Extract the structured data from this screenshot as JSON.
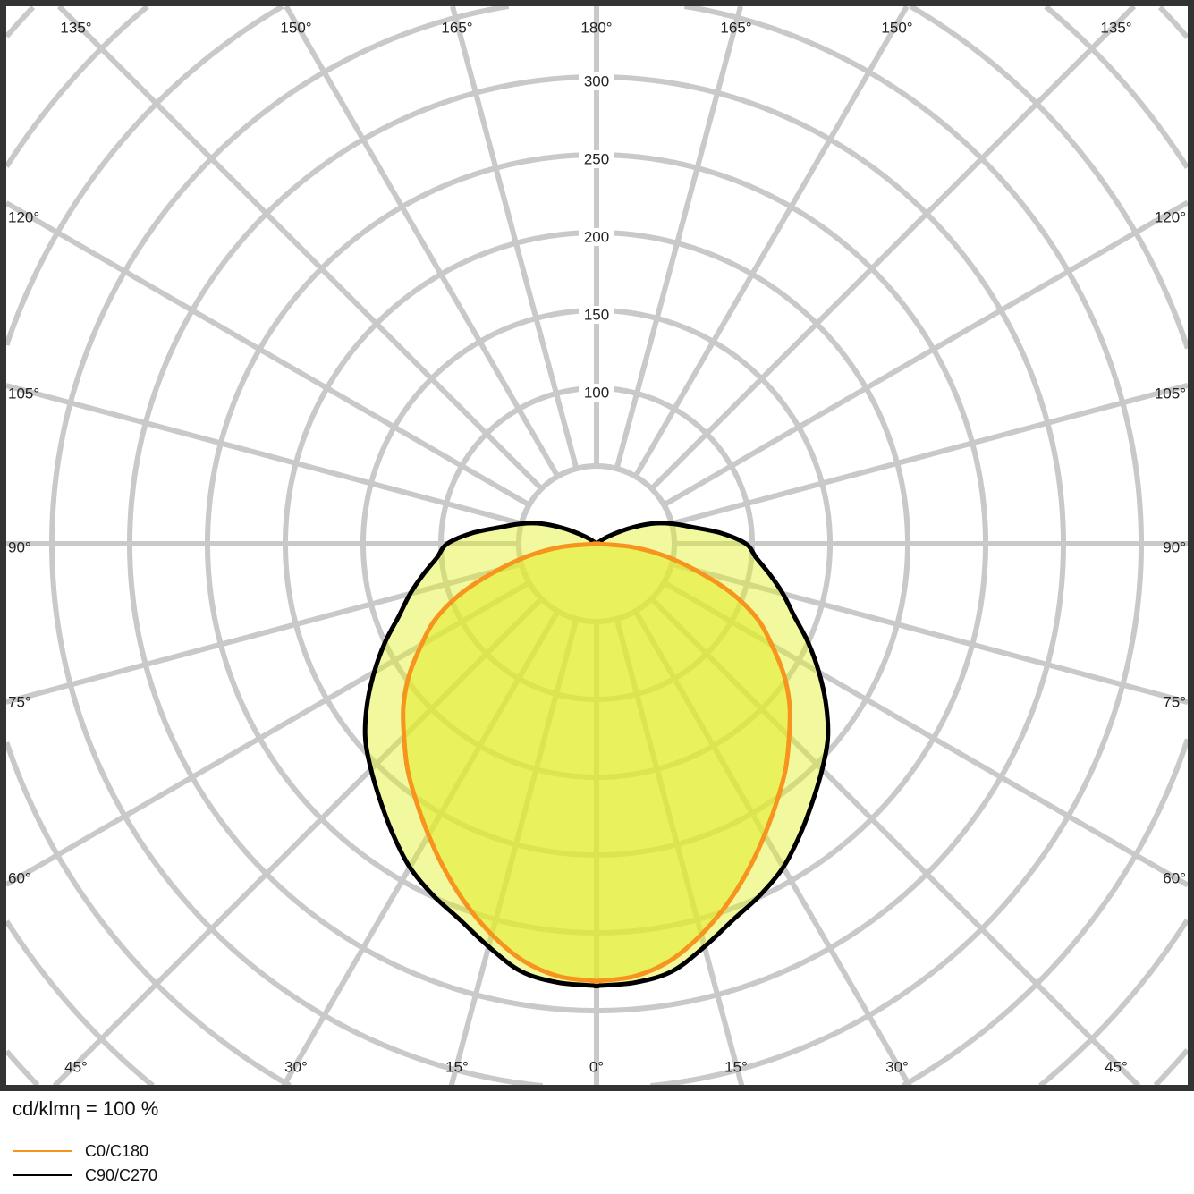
{
  "chart_data": {
    "type": "polar",
    "unit_label": "cd/klmη = 100 %",
    "radial_ticks": [
      100,
      150,
      200,
      250,
      300
    ],
    "radial_grid_step": 50,
    "angle_labels": {
      "top": [
        "135°",
        "150°",
        "165°",
        "180°",
        "165°",
        "150°",
        "135°"
      ],
      "left": [
        "120°",
        "105°",
        "90°",
        "75°",
        "60°"
      ],
      "right": [
        "120°",
        "105°",
        "90°",
        "75°",
        "60°"
      ],
      "bottom": [
        "45°",
        "30°",
        "15°",
        "0°",
        "15°",
        "30°",
        "45°"
      ]
    },
    "angles_deg": [
      0,
      5,
      10,
      15,
      20,
      25,
      30,
      35,
      40,
      45,
      50,
      55,
      60,
      65,
      70,
      75,
      80,
      85,
      90,
      95,
      100,
      105,
      110,
      115,
      120,
      125,
      130
    ],
    "series": [
      {
        "name": "C0/C180",
        "color": "#f7941d",
        "values": [
          281,
          279,
          272,
          260,
          246,
          231,
          216,
          202,
          189,
          175,
          162,
          147,
          130,
          114,
          92,
          66,
          44,
          22,
          0,
          0,
          0,
          0,
          0,
          0,
          0,
          0,
          0
        ]
      },
      {
        "name": "C90/C270",
        "color": "#000000",
        "values": [
          284,
          283,
          279,
          268,
          257,
          249,
          240,
          228,
          216,
          205,
          194,
          180,
          165,
          150,
          135,
          124,
          113,
          103,
          96,
          80,
          62,
          50,
          38,
          24,
          12,
          5,
          0
        ]
      }
    ],
    "grid": true,
    "legend_position": "bottom-left"
  }
}
